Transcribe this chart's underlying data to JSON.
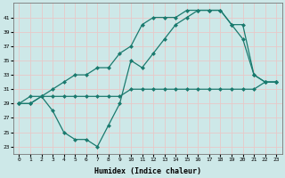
{
  "xlabel": "Humidex (Indice chaleur)",
  "bg_color": "#cde8e8",
  "grid_color": "#e8c8c8",
  "line_color": "#1a7a6e",
  "xlim": [
    -0.5,
    23.5
  ],
  "ylim": [
    22,
    43
  ],
  "yticks": [
    23,
    25,
    27,
    29,
    31,
    33,
    35,
    37,
    39,
    41
  ],
  "xticks": [
    0,
    1,
    2,
    3,
    4,
    5,
    6,
    7,
    8,
    9,
    10,
    11,
    12,
    13,
    14,
    15,
    16,
    17,
    18,
    19,
    20,
    21,
    22,
    23
  ],
  "line1_x": [
    0,
    1,
    2,
    3,
    4,
    5,
    6,
    7,
    8,
    9,
    10,
    11,
    12,
    13,
    14,
    15,
    16,
    17,
    18,
    19,
    20,
    21,
    22,
    23
  ],
  "line1_y": [
    29,
    29,
    30,
    30,
    30,
    30,
    30,
    30,
    30,
    30,
    31,
    31,
    31,
    31,
    31,
    31,
    31,
    31,
    31,
    31,
    31,
    31,
    32,
    32
  ],
  "line2_x": [
    0,
    1,
    2,
    3,
    4,
    5,
    6,
    7,
    8,
    9,
    10,
    11,
    12,
    13,
    14,
    15,
    16,
    17,
    18,
    19,
    20,
    21,
    22,
    23
  ],
  "line2_y": [
    29,
    29,
    30,
    28,
    25,
    24,
    24,
    23,
    26,
    29,
    35,
    34,
    36,
    38,
    40,
    41,
    42,
    42,
    42,
    40,
    40,
    33,
    32,
    32
  ],
  "line3_x": [
    0,
    1,
    2,
    3,
    4,
    5,
    6,
    7,
    8,
    9,
    10,
    11,
    12,
    13,
    14,
    15,
    16,
    17,
    18,
    19,
    20,
    21,
    22,
    23
  ],
  "line3_y": [
    29,
    30,
    30,
    31,
    32,
    33,
    33,
    34,
    34,
    36,
    37,
    40,
    41,
    41,
    41,
    42,
    42,
    42,
    42,
    40,
    38,
    33,
    32,
    32
  ]
}
